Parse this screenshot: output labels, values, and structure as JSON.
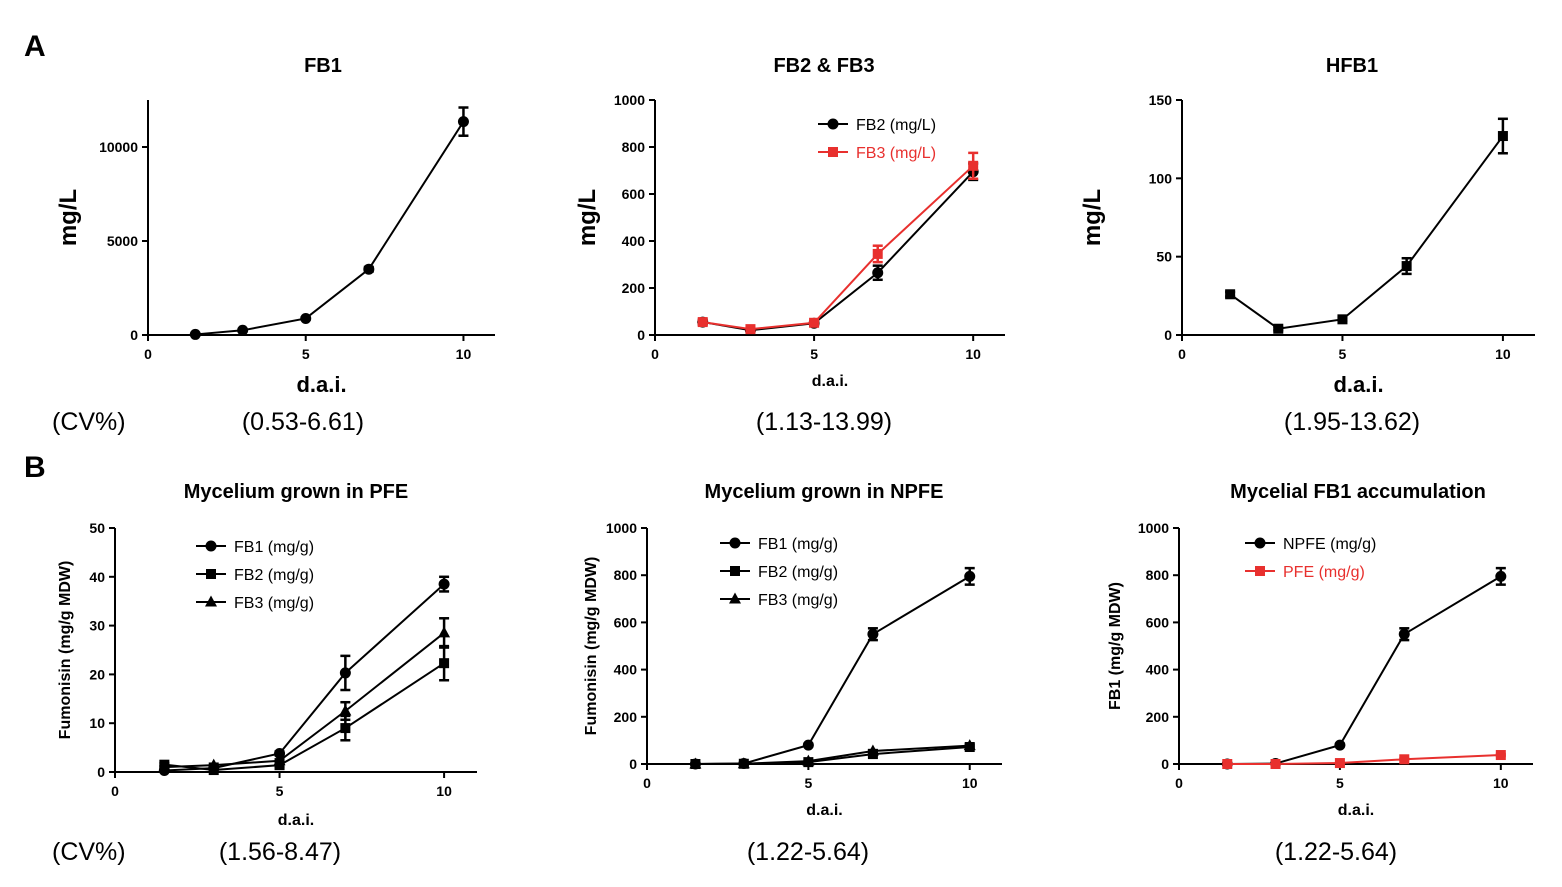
{
  "figure": {
    "panel_a": "A",
    "panel_b": "B",
    "cv_label_a": "(CV%)",
    "cv_label_b": "(CV%)"
  },
  "chart_data": [
    {
      "id": "a1",
      "type": "line",
      "title": "FB1",
      "xlabel": "d.a.i.",
      "ylabel": "mg/L",
      "cv": "(0.53-6.61)",
      "xlim": [
        0,
        11
      ],
      "ylim": [
        0,
        12500
      ],
      "xticks": [
        0,
        5,
        10
      ],
      "yticks": [
        0,
        5000,
        10000
      ],
      "legend": null,
      "series": [
        {
          "name": "FB1",
          "color": "#000000",
          "marker": "circle",
          "x": [
            1.5,
            3,
            5,
            7,
            10
          ],
          "y": [
            30,
            250,
            880,
            3500,
            11350
          ],
          "err": [
            20,
            40,
            60,
            120,
            750
          ]
        }
      ]
    },
    {
      "id": "a2",
      "type": "line",
      "title": "FB2 & FB3",
      "xlabel": "d.a.i.",
      "ylabel": "mg/L",
      "cv": "(1.13-13.99)",
      "xlim": [
        0,
        11
      ],
      "ylim": [
        0,
        1000
      ],
      "xticks": [
        0,
        5,
        10
      ],
      "yticks": [
        0,
        200,
        400,
        600,
        800,
        1000
      ],
      "legend": "top-right",
      "series": [
        {
          "name": "FB2 (mg/L)",
          "color": "#000000",
          "marker": "circle",
          "x": [
            1.5,
            3,
            5,
            7,
            10
          ],
          "y": [
            55,
            20,
            50,
            265,
            695
          ],
          "err": [
            10,
            5,
            8,
            30,
            35
          ]
        },
        {
          "name": "FB3 (mg/L)",
          "color": "#e8302e",
          "marker": "square",
          "x": [
            1.5,
            3,
            5,
            7,
            10
          ],
          "y": [
            55,
            25,
            52,
            345,
            720
          ],
          "err": [
            10,
            5,
            8,
            35,
            55
          ]
        }
      ]
    },
    {
      "id": "a3",
      "type": "line",
      "title": "HFB1",
      "xlabel": "d.a.i.",
      "ylabel": "mg/L",
      "cv": "(1.95-13.62)",
      "xlim": [
        0,
        11
      ],
      "ylim": [
        0,
        150
      ],
      "xticks": [
        0,
        5,
        10
      ],
      "yticks": [
        0,
        50,
        100,
        150
      ],
      "legend": null,
      "series": [
        {
          "name": "HFB1",
          "color": "#000000",
          "marker": "square",
          "x": [
            1.5,
            3,
            5,
            7,
            10
          ],
          "y": [
            26,
            4,
            10,
            44,
            127
          ],
          "err": [
            1.5,
            1,
            1,
            5,
            11
          ]
        }
      ]
    },
    {
      "id": "b1",
      "type": "line",
      "title": "Mycelium grown in PFE",
      "xlabel": "d.a.i.",
      "ylabel": "Fumonisin (mg/g MDW)",
      "cv": "(1.56-8.47)",
      "xlim": [
        0,
        11
      ],
      "ylim": [
        0,
        50
      ],
      "xticks": [
        0,
        5,
        10
      ],
      "yticks": [
        0,
        10,
        20,
        30,
        40,
        50
      ],
      "legend": "top-left",
      "series": [
        {
          "name": "FB1 (mg/g)",
          "color": "#000000",
          "marker": "circle",
          "x": [
            1.5,
            3,
            5,
            7,
            10
          ],
          "y": [
            0.3,
            0.8,
            3.8,
            20.3,
            38.5
          ],
          "err": [
            0.2,
            0.2,
            0.4,
            3.5,
            1.5
          ]
        },
        {
          "name": "FB2 (mg/g)",
          "color": "#000000",
          "marker": "square",
          "x": [
            1.5,
            3,
            5,
            7,
            10
          ],
          "y": [
            1.5,
            0.4,
            1.4,
            9.0,
            22.3
          ],
          "err": [
            0.3,
            0.2,
            0.3,
            2.5,
            3.5
          ]
        },
        {
          "name": "FB3 (mg/g)",
          "color": "#000000",
          "marker": "triangle",
          "x": [
            1.5,
            3,
            5,
            7,
            10
          ],
          "y": [
            1.0,
            1.4,
            2.3,
            12.5,
            28.5
          ],
          "err": [
            0.2,
            0.3,
            0.3,
            1.8,
            3.0
          ]
        }
      ]
    },
    {
      "id": "b2",
      "type": "line",
      "title": "Mycelium grown in NPFE",
      "xlabel": "d.a.i.",
      "ylabel": "Fumonisin (mg/g MDW)",
      "cv": "(1.22-5.64)",
      "xlim": [
        0,
        11
      ],
      "ylim": [
        0,
        1000
      ],
      "xticks": [
        0,
        5,
        10
      ],
      "yticks": [
        0,
        200,
        400,
        600,
        800,
        1000
      ],
      "legend": "top-left",
      "series": [
        {
          "name": "FB1  (mg/g)",
          "color": "#000000",
          "marker": "circle",
          "x": [
            1.5,
            3,
            5,
            7,
            10
          ],
          "y": [
            0,
            2,
            80,
            550,
            795
          ],
          "err": [
            0,
            1,
            5,
            25,
            35
          ]
        },
        {
          "name": "FB2  (mg/g)",
          "color": "#000000",
          "marker": "square",
          "x": [
            1.5,
            3,
            5,
            7,
            10
          ],
          "y": [
            0,
            1,
            8,
            42,
            72
          ],
          "err": [
            0,
            1,
            2,
            4,
            6
          ]
        },
        {
          "name": "FB3  (mg/g)",
          "color": "#000000",
          "marker": "triangle",
          "x": [
            1.5,
            3,
            5,
            7,
            10
          ],
          "y": [
            0,
            1,
            12,
            55,
            78
          ],
          "err": [
            0,
            1,
            2,
            4,
            6
          ]
        }
      ]
    },
    {
      "id": "b3",
      "type": "line",
      "title": "Mycelial FB1 accumulation",
      "xlabel": "d.a.i.",
      "ylabel": "FB1 (mg/g MDW)",
      "cv": "(1.22-5.64)",
      "xlim": [
        0,
        11
      ],
      "ylim": [
        0,
        1000
      ],
      "xticks": [
        0,
        5,
        10
      ],
      "yticks": [
        0,
        200,
        400,
        600,
        800,
        1000
      ],
      "legend": "top-left",
      "series": [
        {
          "name": "NPFE (mg/g)",
          "color": "#000000",
          "marker": "circle",
          "x": [
            1.5,
            3,
            5,
            7,
            10
          ],
          "y": [
            0,
            2,
            80,
            550,
            795
          ],
          "err": [
            0,
            1,
            5,
            25,
            35
          ]
        },
        {
          "name": "PFE (mg/g)",
          "color": "#e8302e",
          "marker": "square",
          "x": [
            1.5,
            3,
            5,
            7,
            10
          ],
          "y": [
            0,
            0,
            4,
            20,
            38
          ],
          "err": [
            0,
            0,
            1,
            3,
            4
          ]
        }
      ]
    }
  ]
}
